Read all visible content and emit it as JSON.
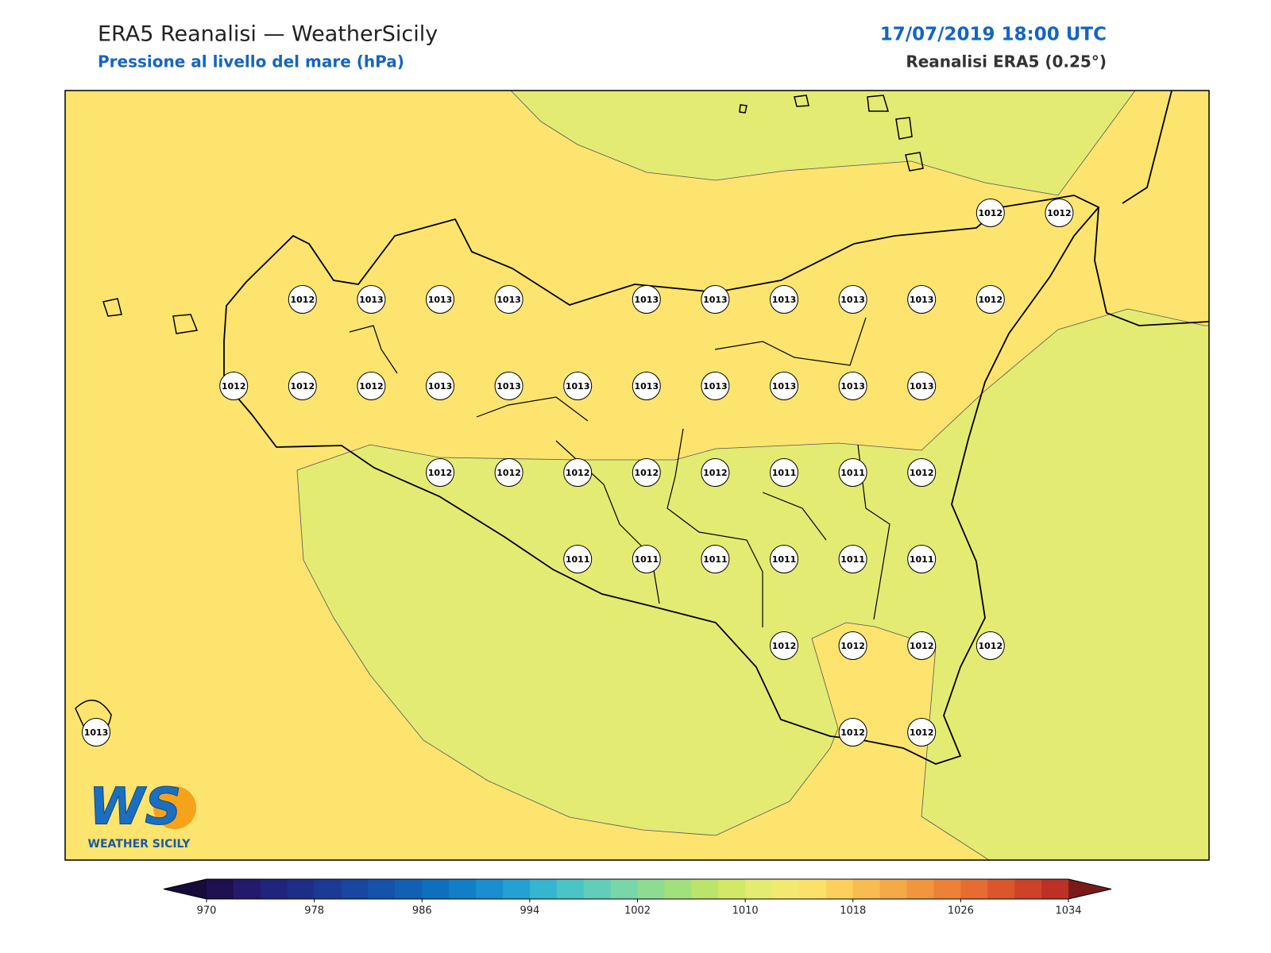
{
  "header": {
    "title": "ERA5 Reanalisi — WeatherSicily",
    "subtitle": "Pressione al livello del mare (hPa)",
    "date": "17/07/2019 18:00 UTC",
    "source": "Reanalisi ERA5 (0.25°)"
  },
  "stations": [
    [
      null,
      null,
      null,
      null,
      null,
      null,
      null,
      null,
      null,
      null,
      null,
      null,
      null,
      1012,
      1012
    ],
    [
      null,
      null,
      null,
      1012,
      1013,
      1013,
      1013,
      null,
      1013,
      1013,
      1013,
      1013,
      1013,
      1012,
      null
    ],
    [
      null,
      null,
      1012,
      1012,
      1012,
      1013,
      1013,
      1013,
      1013,
      1013,
      1013,
      1013,
      1013,
      null,
      null
    ],
    [
      null,
      null,
      null,
      null,
      null,
      1012,
      1012,
      1012,
      1012,
      1012,
      1011,
      1011,
      1012,
      null,
      null
    ],
    [
      null,
      null,
      null,
      null,
      null,
      null,
      null,
      1011,
      1011,
      1011,
      1011,
      1011,
      1011,
      null,
      null
    ],
    [
      null,
      null,
      null,
      null,
      null,
      null,
      null,
      null,
      null,
      null,
      1012,
      1012,
      1012,
      1012,
      null
    ],
    [
      1013,
      null,
      null,
      null,
      null,
      null,
      null,
      null,
      null,
      null,
      null,
      1012,
      1012,
      null,
      null
    ]
  ],
  "colorbar": {
    "lim": [
      970,
      1034
    ],
    "ticks": [
      970,
      978,
      986,
      994,
      1002,
      1010,
      1018,
      1026,
      1034
    ],
    "colors": [
      "#1f1050",
      "#241a6a",
      "#21247c",
      "#1e2d88",
      "#1b3a95",
      "#1846a0",
      "#1553aa",
      "#1260b4",
      "#0f6fbf",
      "#127ec8",
      "#1a8ed0",
      "#25a0d4",
      "#36b4d0",
      "#4bc4c8",
      "#62ceba",
      "#78d6a8",
      "#8cdc92",
      "#a2e07c",
      "#bae46a",
      "#d2e866",
      "#e4eb72",
      "#f3e870",
      "#fde06a",
      "#fcd05c",
      "#f8bd50",
      "#f4aa46",
      "#f0963e",
      "#ec8238",
      "#e66c32",
      "#dc562c",
      "#ce4228",
      "#bc3026"
    ],
    "under": "#160b39",
    "over": "#7a1a18"
  },
  "logo": {
    "mark": "WS",
    "name": "WEATHER SICILY"
  }
}
